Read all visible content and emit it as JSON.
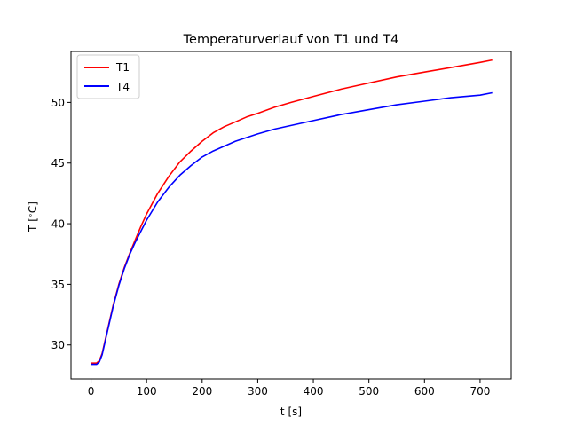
{
  "chart_data": {
    "type": "line",
    "title": "Temperaturverlauf von T1 und T4",
    "xlabel": "t [s]",
    "ylabel_prefix": "T [",
    "ylabel_degree": "∘",
    "ylabel_suffix": "C]",
    "xlim": [
      -36,
      756
    ],
    "ylim": [
      27.2,
      54.2
    ],
    "xticks": [
      0,
      100,
      200,
      300,
      400,
      500,
      600,
      700
    ],
    "yticks": [
      30,
      35,
      40,
      45,
      50
    ],
    "grid": false,
    "legend_position": "upper left",
    "series": [
      {
        "name": "T1",
        "color": "#ff0000",
        "x": [
          0,
          5,
          10,
          15,
          20,
          30,
          40,
          50,
          60,
          70,
          80,
          90,
          100,
          120,
          140,
          160,
          180,
          200,
          220,
          240,
          260,
          280,
          300,
          330,
          360,
          400,
          450,
          500,
          550,
          600,
          650,
          700,
          722
        ],
        "y": [
          28.5,
          28.5,
          28.5,
          28.7,
          29.3,
          31.3,
          33.3,
          35.0,
          36.4,
          37.6,
          38.7,
          39.8,
          40.8,
          42.5,
          43.9,
          45.1,
          46.0,
          46.8,
          47.5,
          48.0,
          48.4,
          48.8,
          49.1,
          49.6,
          50.0,
          50.5,
          51.1,
          51.6,
          52.1,
          52.5,
          52.9,
          53.3,
          53.5
        ]
      },
      {
        "name": "T4",
        "color": "#0000ff",
        "x": [
          0,
          5,
          10,
          15,
          20,
          30,
          40,
          50,
          60,
          70,
          80,
          90,
          100,
          120,
          140,
          160,
          180,
          200,
          220,
          240,
          260,
          280,
          300,
          330,
          360,
          400,
          450,
          500,
          550,
          600,
          650,
          700,
          722
        ],
        "y": [
          28.4,
          28.4,
          28.4,
          28.6,
          29.2,
          31.2,
          33.2,
          34.9,
          36.3,
          37.5,
          38.5,
          39.4,
          40.3,
          41.8,
          43.0,
          44.0,
          44.8,
          45.5,
          46.0,
          46.4,
          46.8,
          47.1,
          47.4,
          47.8,
          48.1,
          48.5,
          49.0,
          49.4,
          49.8,
          50.1,
          50.4,
          50.6,
          50.8
        ]
      }
    ]
  }
}
